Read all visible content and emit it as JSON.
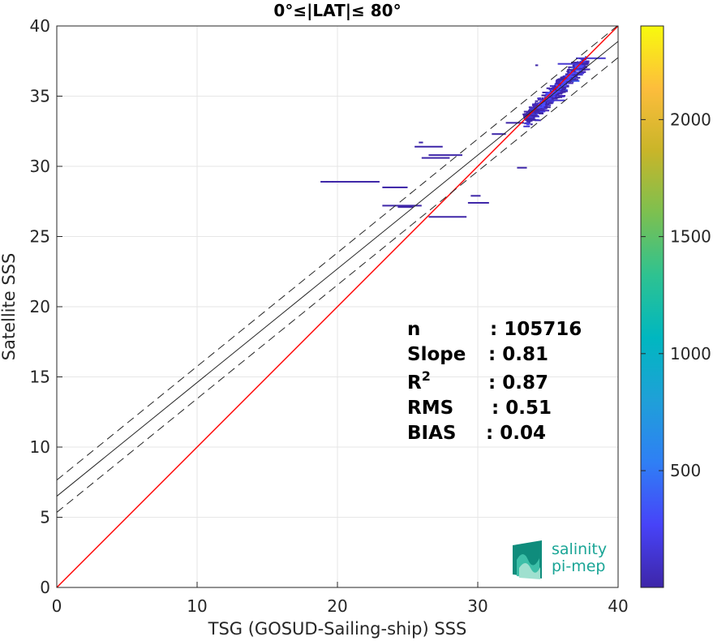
{
  "chart_data": {
    "type": "scatter",
    "title": "0°≤|LAT|≤ 80°",
    "xlabel": "TSG (GOSUD-Sailing-ship) SSS",
    "ylabel": "Satellite SSS",
    "xlim": [
      0,
      40
    ],
    "ylim": [
      0,
      40
    ],
    "xticks": [
      "0",
      "10",
      "20",
      "30",
      "40"
    ],
    "yticks": [
      "0",
      "5",
      "10",
      "15",
      "20",
      "25",
      "30",
      "35",
      "40"
    ],
    "grid": true,
    "identity_line": {
      "slope": 1,
      "intercept": 0,
      "color": "#ff0000"
    },
    "regression_line": {
      "slope": 0.81,
      "intercept": 6.5,
      "color": "#262626"
    },
    "confidence_band": {
      "offset": 1.15,
      "style": "dashed"
    },
    "density_segments": [
      {
        "x0": 18.8,
        "x1": 23.0,
        "y": 28.9
      },
      {
        "x0": 23.2,
        "x1": 25.0,
        "y": 28.5
      },
      {
        "x0": 23.2,
        "x1": 26.0,
        "y": 27.2
      },
      {
        "x0": 24.3,
        "x1": 25.4,
        "y": 27.1
      },
      {
        "x0": 25.5,
        "x1": 27.5,
        "y": 31.4
      },
      {
        "x0": 25.8,
        "x1": 26.1,
        "y": 31.7
      },
      {
        "x0": 26.0,
        "x1": 28.0,
        "y": 30.6
      },
      {
        "x0": 26.5,
        "x1": 28.9,
        "y": 30.8
      },
      {
        "x0": 26.5,
        "x1": 29.2,
        "y": 26.4
      },
      {
        "x0": 29.3,
        "x1": 30.8,
        "y": 27.4
      },
      {
        "x0": 29.5,
        "x1": 30.2,
        "y": 27.9
      },
      {
        "x0": 31.0,
        "x1": 32.0,
        "y": 32.3
      },
      {
        "x0": 32.0,
        "x1": 33.3,
        "y": 33.1
      },
      {
        "x0": 32.8,
        "x1": 33.5,
        "y": 29.9
      },
      {
        "x0": 34.1,
        "x1": 34.3,
        "y": 37.2
      }
    ],
    "density_cluster": {
      "x_range": [
        33.3,
        37.6
      ],
      "y_range": [
        33.3,
        37.6
      ],
      "spread": 0.55
    },
    "colorbar": {
      "range": [
        1,
        2400
      ],
      "ticks": [
        "500",
        "1000",
        "1500",
        "2000"
      ],
      "tick_values": [
        500,
        1000,
        1500,
        2000
      ],
      "colormap": "parula",
      "colors": [
        "#3e26a8",
        "#4743f8",
        "#2f7ff5",
        "#1fa0d8",
        "#00b7c0",
        "#2ec291",
        "#7cc050",
        "#c9b529",
        "#fdbd3c",
        "#f8fa0d"
      ]
    },
    "stats": [
      {
        "label": "n",
        "value": ": 105716"
      },
      {
        "label": "Slope",
        "value": ": 0.81"
      },
      {
        "label": "R",
        "sup": "2",
        "value": ": 0.87"
      },
      {
        "label": "RMS",
        "value": ": 0.51"
      },
      {
        "label": "BIAS",
        "value": ": 0.04"
      }
    ],
    "logo": {
      "line1": "salinity",
      "line2": "pi-mep"
    }
  }
}
